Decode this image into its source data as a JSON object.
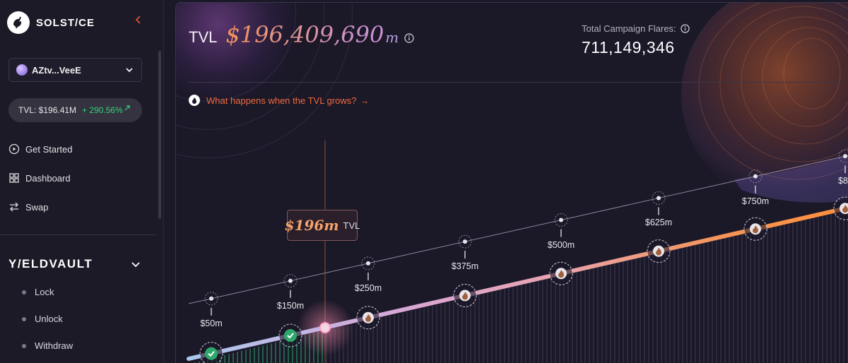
{
  "app": {
    "brand": "SOLST/CE"
  },
  "wallet": {
    "address": "AZtv...VeeE"
  },
  "tvl_pill": {
    "label": "TVL: $196.41M",
    "change": "+ 290.56%"
  },
  "nav": [
    {
      "label": "Get Started",
      "icon": "play-circle-icon"
    },
    {
      "label": "Dashboard",
      "icon": "grid-icon"
    },
    {
      "label": "Swap",
      "icon": "swap-arrows-icon"
    }
  ],
  "yieldvault": {
    "title": "Y/ELDVAULT",
    "items": [
      {
        "label": "Lock"
      },
      {
        "label": "Unlock"
      },
      {
        "label": "Withdraw"
      }
    ]
  },
  "header": {
    "tvl_label": "TVL",
    "tvl_value": "$196,409,690",
    "tvl_unit": "m",
    "flares_label": "Total Campaign Flares:",
    "flares_value": "711,149,346",
    "grow_link": "What happens when the TVL grows?",
    "grow_arrow": "→"
  },
  "current": {
    "value": "$196m",
    "unit": "TVL"
  },
  "milestones": [
    {
      "label": "$50m",
      "achieved": true
    },
    {
      "label": "$150m",
      "achieved": true
    },
    {
      "label": "$250m",
      "achieved": false
    },
    {
      "label": "$375m",
      "achieved": false
    },
    {
      "label": "$500m",
      "achieved": false
    },
    {
      "label": "$625m",
      "achieved": false
    },
    {
      "label": "$750m",
      "achieved": false
    },
    {
      "label": "$8",
      "achieved": false
    }
  ],
  "colors": {
    "accent": "#f06a3f",
    "positive": "#34d27a",
    "achieved": "#2ea86a"
  }
}
